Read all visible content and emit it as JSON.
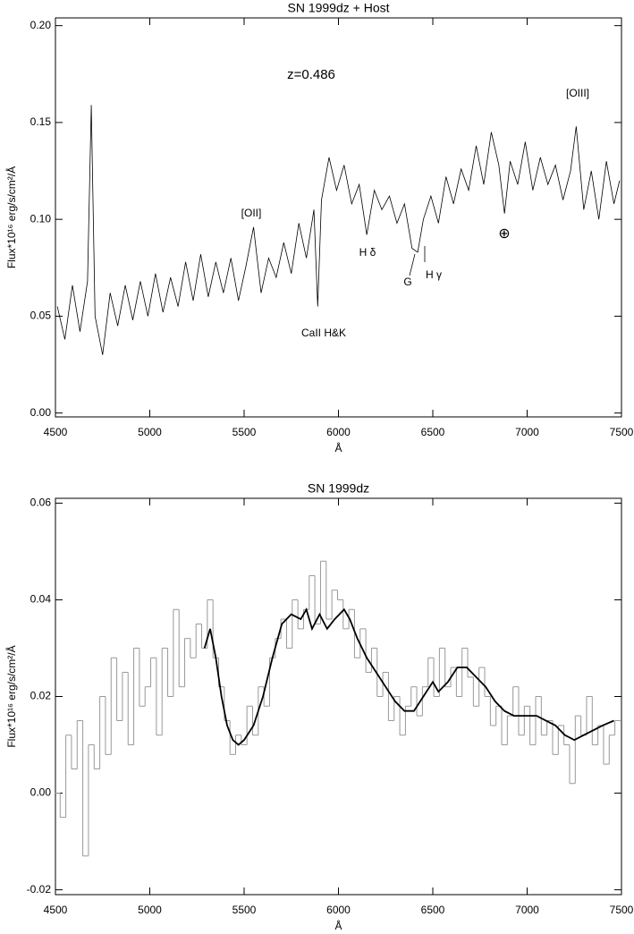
{
  "chart_data": [
    {
      "type": "line",
      "title": "SN 1999dz + Host",
      "xlabel": "Å",
      "ylabel": "Flux*10¹⁶ erg/s/cm²/Å",
      "xlim": [
        4500,
        7500
      ],
      "ylim": [
        -0.002,
        0.204
      ],
      "xticks": [
        4500,
        5000,
        5500,
        6000,
        6500,
        7000,
        7500
      ],
      "yticks": [
        {
          "value": 0,
          "label": "0.00"
        },
        {
          "value": 0.05,
          "label": "0.05"
        },
        {
          "value": 0.1,
          "label": "0.10"
        },
        {
          "value": 0.15,
          "label": "0.15"
        },
        {
          "value": 0.2,
          "label": "0.20"
        }
      ],
      "annotations": [
        "z=0.486",
        "[OIII]",
        "[OII]",
        "H δ",
        "G",
        "H γ",
        "⊕",
        "CaII H&K"
      ],
      "series": [
        {
          "color": "#000000",
          "x": [
            4510,
            4550,
            4590,
            4630,
            4670,
            4690,
            4710,
            4750,
            4790,
            4830,
            4870,
            4910,
            4950,
            4990,
            5030,
            5070,
            5110,
            5150,
            5190,
            5230,
            5270,
            5310,
            5350,
            5390,
            5430,
            5470,
            5510,
            5550,
            5590,
            5630,
            5670,
            5710,
            5750,
            5790,
            5830,
            5870,
            5890,
            5910,
            5950,
            5990,
            6030,
            6070,
            6110,
            6150,
            6190,
            6230,
            6270,
            6310,
            6350,
            6390,
            6420,
            6450,
            6490,
            6530,
            6570,
            6610,
            6650,
            6690,
            6730,
            6770,
            6810,
            6850,
            6880,
            6910,
            6950,
            6990,
            7030,
            7070,
            7110,
            7150,
            7190,
            7230,
            7260,
            7300,
            7340,
            7380,
            7420,
            7460,
            7490
          ],
          "values": [
            0.055,
            0.038,
            0.066,
            0.042,
            0.068,
            0.159,
            0.05,
            0.03,
            0.062,
            0.045,
            0.066,
            0.048,
            0.068,
            0.05,
            0.072,
            0.052,
            0.07,
            0.055,
            0.078,
            0.058,
            0.082,
            0.06,
            0.078,
            0.062,
            0.08,
            0.058,
            0.076,
            0.096,
            0.062,
            0.08,
            0.07,
            0.088,
            0.072,
            0.098,
            0.08,
            0.105,
            0.055,
            0.11,
            0.132,
            0.115,
            0.128,
            0.108,
            0.118,
            0.092,
            0.115,
            0.105,
            0.112,
            0.098,
            0.108,
            0.085,
            0.083,
            0.1,
            0.112,
            0.098,
            0.122,
            0.108,
            0.126,
            0.115,
            0.138,
            0.118,
            0.145,
            0.128,
            0.103,
            0.13,
            0.118,
            0.14,
            0.115,
            0.132,
            0.118,
            0.128,
            0.11,
            0.125,
            0.148,
            0.105,
            0.125,
            0.1,
            0.13,
            0.108,
            0.12
          ]
        }
      ]
    },
    {
      "type": "line",
      "title": "SN 1999dz",
      "xlabel": "Å",
      "ylabel": "Flux*10¹⁶ erg/s/cm²/Å",
      "xlim": [
        4500,
        7500
      ],
      "ylim": [
        -0.021,
        0.061
      ],
      "xticks": [
        4500,
        5000,
        5500,
        6000,
        6500,
        7000,
        7500
      ],
      "yticks": [
        {
          "value": -0.02,
          "label": "-0.02"
        },
        {
          "value": 0,
          "label": "0.00"
        },
        {
          "value": 0.02,
          "label": "0.02"
        },
        {
          "value": 0.04,
          "label": "0.04"
        },
        {
          "value": 0.06,
          "label": "0.06"
        }
      ],
      "series": [
        {
          "color": "#999999",
          "drawstyle": "steps",
          "x": [
            4510,
            4540,
            4570,
            4600,
            4630,
            4660,
            4690,
            4720,
            4750,
            4780,
            4810,
            4840,
            4870,
            4900,
            4930,
            4960,
            4990,
            5020,
            5050,
            5080,
            5110,
            5140,
            5170,
            5200,
            5230,
            5260,
            5290,
            5320,
            5350,
            5380,
            5410,
            5440,
            5470,
            5500,
            5530,
            5560,
            5590,
            5620,
            5650,
            5680,
            5710,
            5740,
            5770,
            5800,
            5830,
            5860,
            5890,
            5920,
            5950,
            5980,
            6010,
            6040,
            6070,
            6100,
            6130,
            6160,
            6190,
            6220,
            6250,
            6280,
            6310,
            6340,
            6370,
            6400,
            6430,
            6460,
            6490,
            6520,
            6550,
            6580,
            6610,
            6640,
            6670,
            6700,
            6730,
            6760,
            6790,
            6820,
            6850,
            6880,
            6910,
            6940,
            6970,
            7000,
            7030,
            7060,
            7090,
            7120,
            7150,
            7180,
            7210,
            7240,
            7270,
            7300,
            7330,
            7360,
            7390,
            7420,
            7450,
            7480
          ],
          "values": [
            0,
            -0.005,
            0.012,
            0.005,
            0.015,
            -0.013,
            0.01,
            0.005,
            0.02,
            0.008,
            0.028,
            0.015,
            0.025,
            0.01,
            0.03,
            0.018,
            0.022,
            0.028,
            0.012,
            0.03,
            0.02,
            0.038,
            0.022,
            0.032,
            0.028,
            0.035,
            0.03,
            0.04,
            0.028,
            0.022,
            0.015,
            0.008,
            0.012,
            0.01,
            0.018,
            0.012,
            0.022,
            0.018,
            0.028,
            0.032,
            0.036,
            0.03,
            0.04,
            0.034,
            0.038,
            0.045,
            0.035,
            0.048,
            0.036,
            0.042,
            0.04,
            0.034,
            0.038,
            0.028,
            0.034,
            0.025,
            0.03,
            0.02,
            0.025,
            0.015,
            0.02,
            0.012,
            0.018,
            0.022,
            0.016,
            0.022,
            0.028,
            0.02,
            0.03,
            0.022,
            0.026,
            0.02,
            0.03,
            0.024,
            0.018,
            0.026,
            0.02,
            0.014,
            0.018,
            0.01,
            0.016,
            0.022,
            0.012,
            0.018,
            0.01,
            0.02,
            0.012,
            0.015,
            0.008,
            0.014,
            0.01,
            0.002,
            0.016,
            0.012,
            0.02,
            0.01,
            0.014,
            0.006,
            0.012,
            0.015
          ]
        },
        {
          "color": "#000000",
          "x": [
            5290,
            5320,
            5350,
            5380,
            5410,
            5440,
            5470,
            5500,
            5550,
            5600,
            5650,
            5700,
            5750,
            5800,
            5830,
            5860,
            5900,
            5940,
            5980,
            6030,
            6060,
            6100,
            6150,
            6200,
            6250,
            6300,
            6350,
            6400,
            6450,
            6500,
            6530,
            6580,
            6630,
            6680,
            6730,
            6780,
            6830,
            6880,
            6930,
            7000,
            7050,
            7100,
            7150,
            7200,
            7250,
            7300,
            7350,
            7400,
            7460
          ],
          "values": [
            0.03,
            0.034,
            0.028,
            0.02,
            0.014,
            0.011,
            0.01,
            0.011,
            0.014,
            0.02,
            0.028,
            0.035,
            0.037,
            0.036,
            0.038,
            0.034,
            0.037,
            0.034,
            0.036,
            0.038,
            0.036,
            0.032,
            0.028,
            0.025,
            0.022,
            0.019,
            0.017,
            0.017,
            0.02,
            0.023,
            0.021,
            0.023,
            0.026,
            0.026,
            0.024,
            0.022,
            0.019,
            0.017,
            0.016,
            0.016,
            0.016,
            0.015,
            0.014,
            0.012,
            0.011,
            0.012,
            0.013,
            0.014,
            0.015
          ]
        }
      ]
    }
  ]
}
